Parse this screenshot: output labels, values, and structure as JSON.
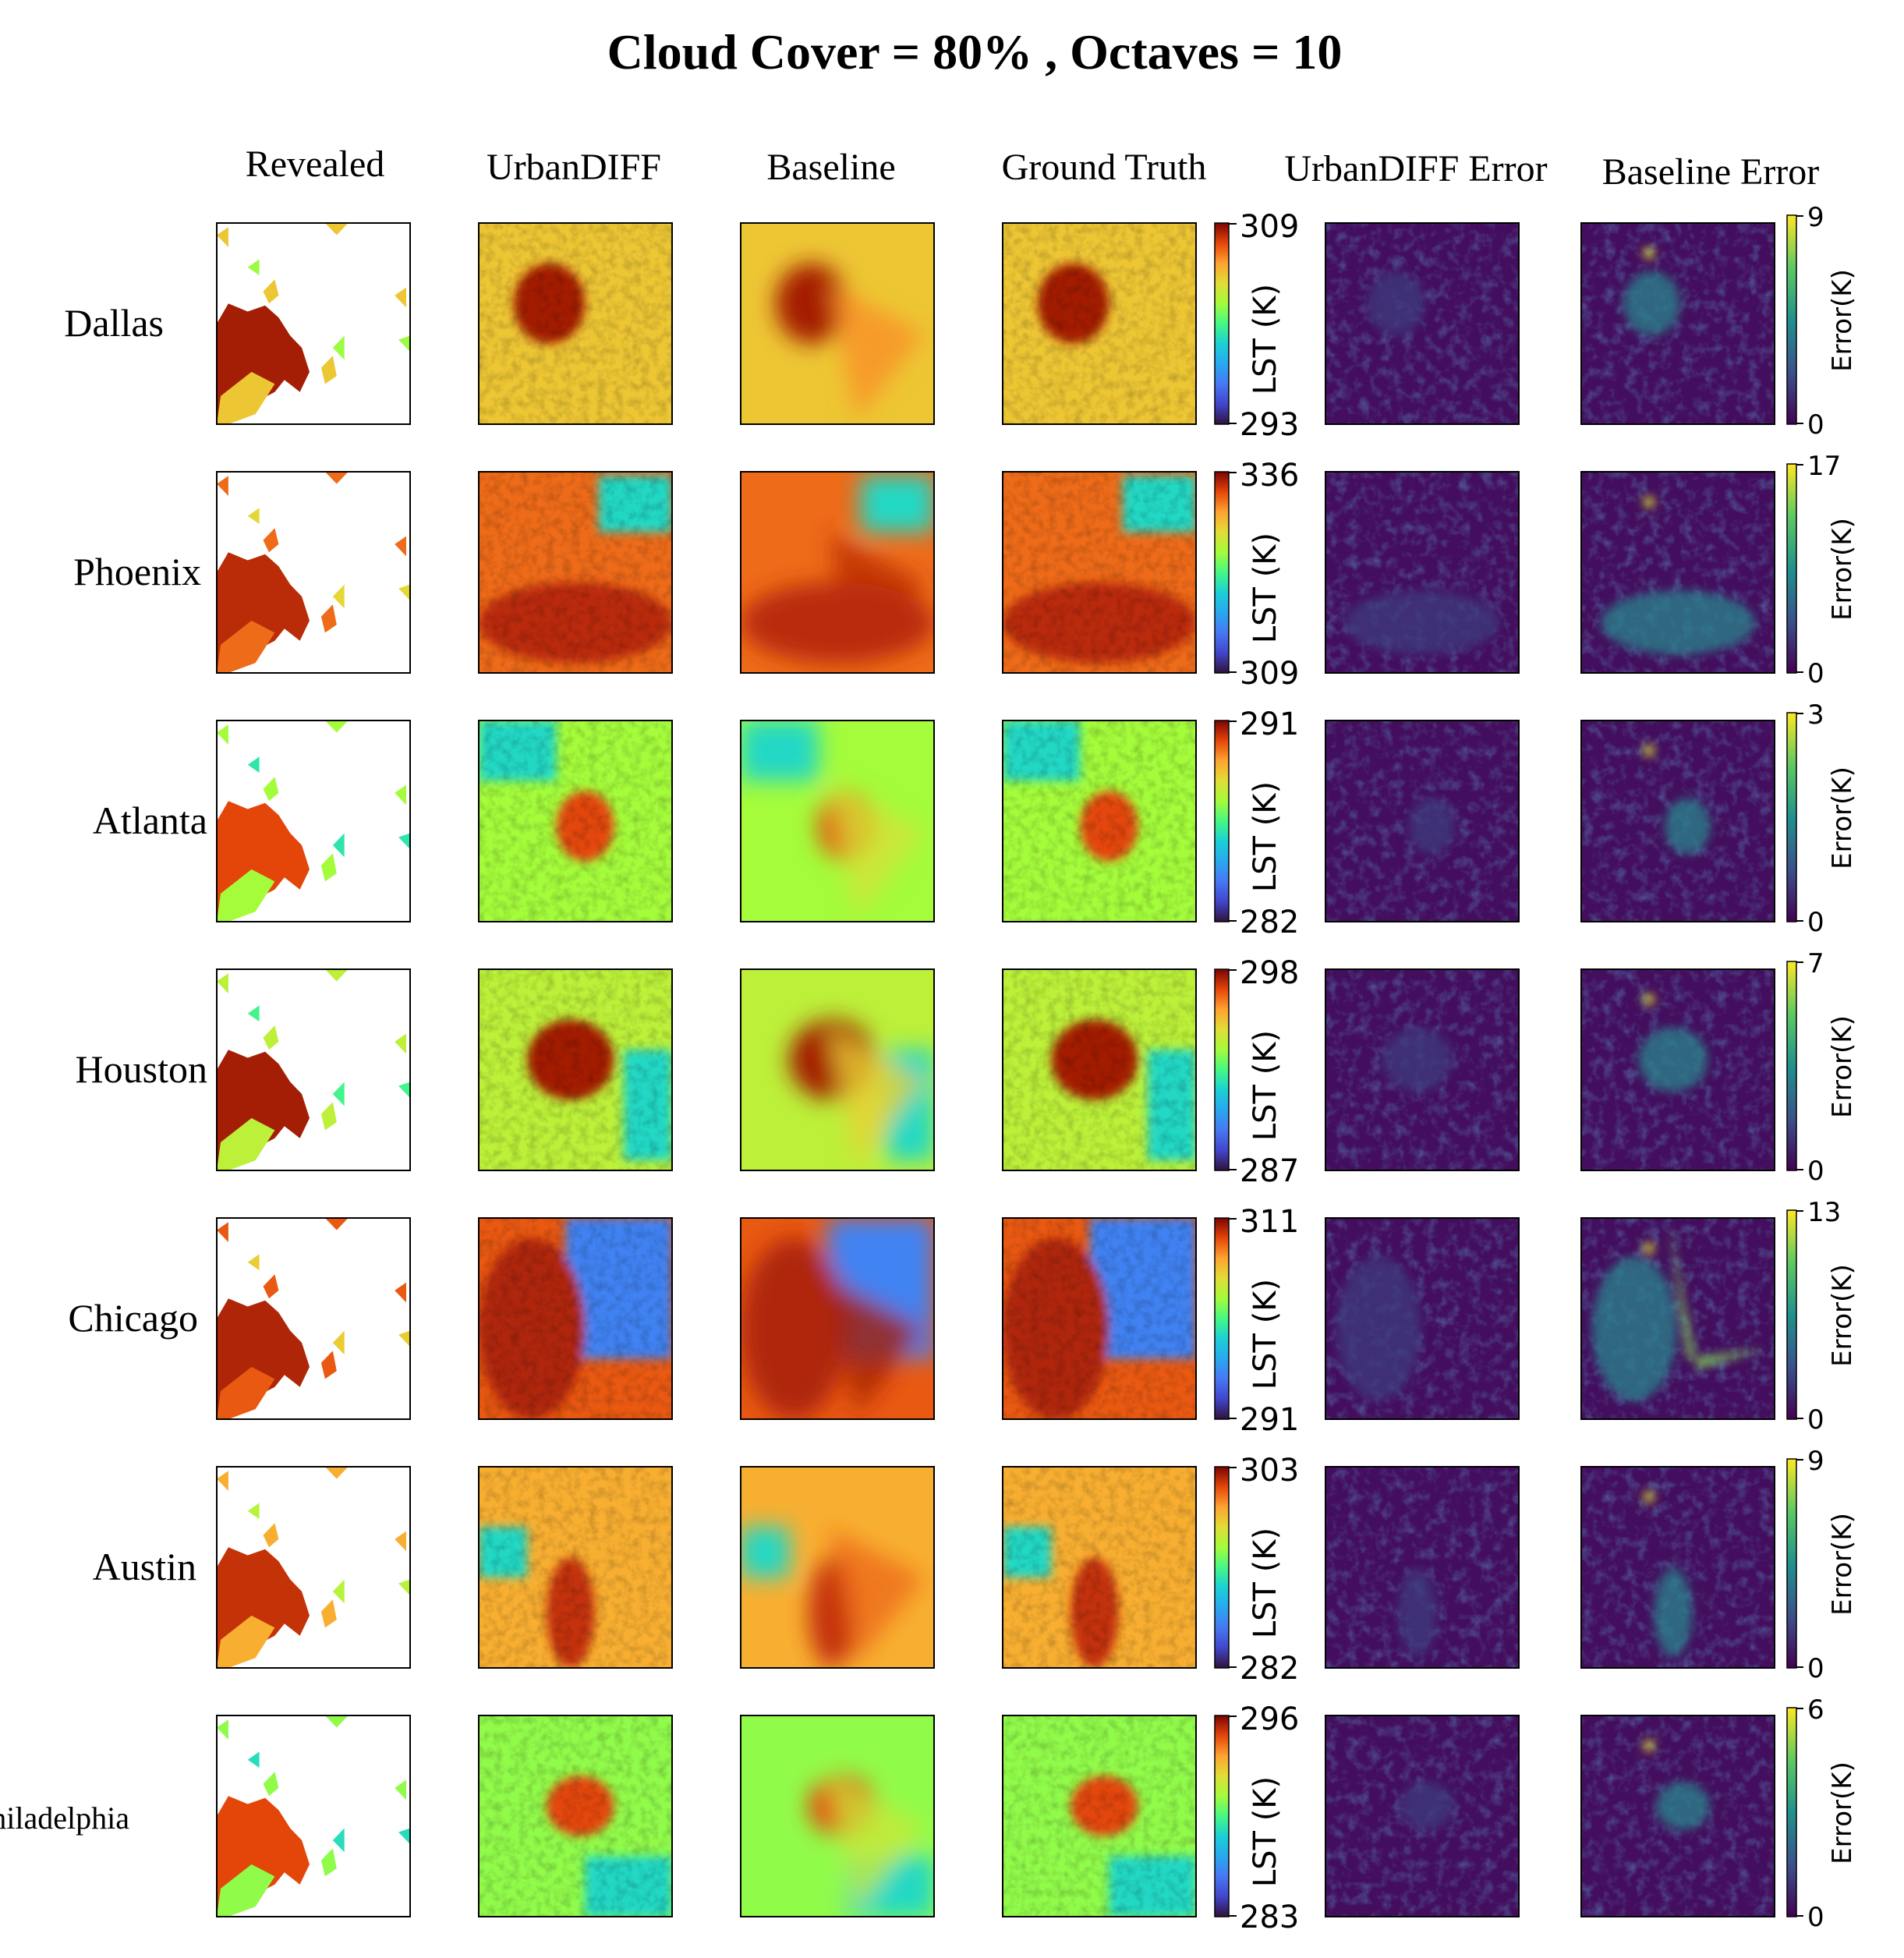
{
  "chart_data": {
    "type": "heatmap",
    "title": "Cloud Cover = 80% , Octaves = 10",
    "columns": [
      "Revealed",
      "UrbanDIFF",
      "Baseline",
      "Ground Truth",
      "UrbanDIFF Error",
      "Baseline Error"
    ],
    "lst_colorbar_label": "LST (K)",
    "error_colorbar_label": "Error(K)",
    "lst_colormap": "turbo",
    "error_colormap": "viridis",
    "rows": [
      {
        "city": "Dallas",
        "lst_max": "309",
        "lst_min": "293",
        "err_max": "9",
        "err_min": "0",
        "lst_max_v": 309,
        "lst_min_v": 293,
        "err_max_v": 9
      },
      {
        "city": "Phoenix",
        "lst_max": "336",
        "lst_min": "309",
        "err_max": "17",
        "err_min": "0",
        "lst_max_v": 336,
        "lst_min_v": 309,
        "err_max_v": 17
      },
      {
        "city": "Atlanta",
        "lst_max": "291",
        "lst_min": "282",
        "err_max": "3",
        "err_min": "0",
        "lst_max_v": 291,
        "lst_min_v": 282,
        "err_max_v": 3
      },
      {
        "city": "Houston",
        "lst_max": "298",
        "lst_min": "287",
        "err_max": "7",
        "err_min": "0",
        "lst_max_v": 298,
        "lst_min_v": 287,
        "err_max_v": 7
      },
      {
        "city": "Chicago",
        "lst_max": "311",
        "lst_min": "291",
        "err_max": "13",
        "err_min": "0",
        "lst_max_v": 311,
        "lst_min_v": 291,
        "err_max_v": 13
      },
      {
        "city": "Austin",
        "lst_max": "303",
        "lst_min": "282",
        "err_max": "9",
        "err_min": "0",
        "lst_max_v": 303,
        "lst_min_v": 282,
        "err_max_v": 9
      },
      {
        "city": "Philadelphia",
        "lst_max": "296",
        "lst_min": "283",
        "err_max": "6",
        "err_min": "0",
        "lst_max_v": 296,
        "lst_min_v": 283,
        "err_max_v": 6
      }
    ]
  }
}
